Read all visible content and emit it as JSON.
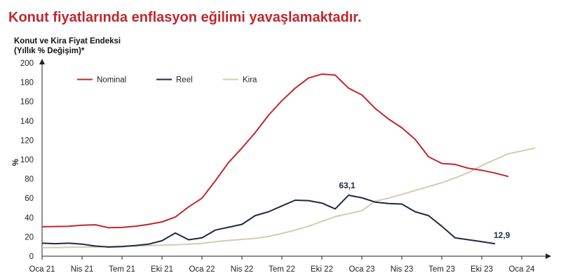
{
  "header": {
    "title": "Konut fiyatlarında enflasyon eğilimi yavaşlamaktadır.",
    "subtitle_line1": "Konut ve Kira Fiyat Endeksi",
    "subtitle_line2": "(Yıllık % Değişim)*"
  },
  "chart_data": {
    "type": "line",
    "ylabel": "%",
    "ylim": [
      0,
      200
    ],
    "yticks": [
      0,
      20,
      40,
      60,
      80,
      100,
      120,
      140,
      160,
      180,
      200
    ],
    "xticks": [
      "Oca 21",
      "Nis 21",
      "Tem 21",
      "Eki 21",
      "Oca 22",
      "Nis 22",
      "Tem 22",
      "Eki 22",
      "Oca 23",
      "Nis 23",
      "Tem 23",
      "Eki 23",
      "Oca 24"
    ],
    "legend_position": "top",
    "grid": false,
    "series": [
      {
        "name": "Nominal",
        "color": "#c0272d",
        "values": [
          30.5,
          30.7,
          31,
          32,
          32.5,
          29.5,
          29.8,
          31,
          33,
          35.5,
          40.5,
          51,
          60,
          78,
          97,
          112,
          128,
          146,
          161,
          174,
          184.5,
          188.5,
          187.5,
          174,
          167,
          153,
          142,
          133,
          121,
          103,
          96,
          95,
          91,
          89,
          86,
          82.5
        ]
      },
      {
        "name": "Reel",
        "color": "#1e2a44",
        "values": [
          13.5,
          13,
          13.5,
          12.5,
          10.5,
          9.5,
          10,
          11,
          12.5,
          16,
          24,
          17,
          19,
          27,
          30,
          33,
          42,
          46,
          52,
          58,
          57.5,
          55,
          49,
          63.1,
          60.5,
          56,
          54.5,
          54,
          46,
          42,
          31,
          19,
          17,
          15,
          12.9
        ]
      },
      {
        "name": "Kira",
        "color": "#d8c9ae",
        "values": [
          9,
          9,
          9.2,
          9.4,
          9.6,
          10,
          10.3,
          10.6,
          11,
          11.4,
          11.8,
          12.4,
          13.2,
          15,
          16.3,
          17.4,
          18.5,
          20.5,
          23.5,
          27,
          31,
          36,
          41,
          44,
          47,
          57,
          60,
          64,
          68,
          72,
          76,
          81,
          86.5,
          94,
          100,
          106,
          109,
          112
        ]
      }
    ],
    "annotations": [
      {
        "series": "Reel",
        "index": 23,
        "text": "63,1"
      },
      {
        "series": "Reel",
        "index": 34,
        "text": "12,9"
      }
    ]
  }
}
